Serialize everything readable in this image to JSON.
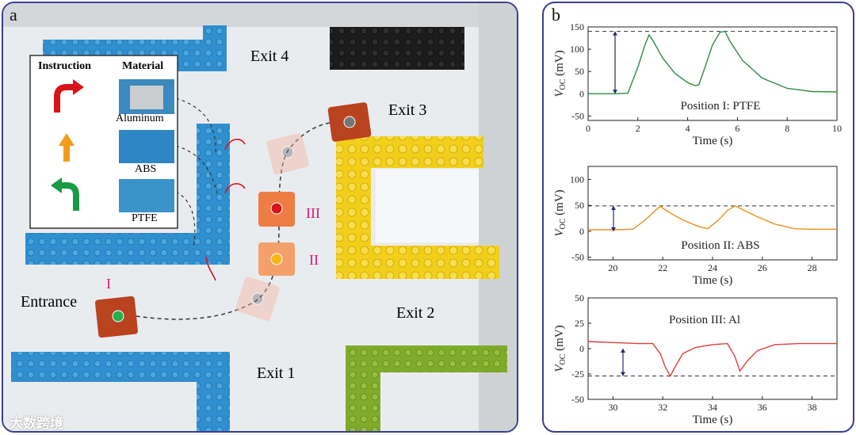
{
  "panel_a": {
    "letter": "a",
    "exits": {
      "exit1": "Exit 1",
      "exit2": "Exit 2",
      "exit3": "Exit 3",
      "exit4": "Exit 4"
    },
    "entrance": "Entrance",
    "positions": {
      "p1": "I",
      "p2": "II",
      "p3": "III"
    },
    "legend": {
      "instruction_header": "Instruction",
      "material_header": "Material",
      "rows": [
        {
          "material": "Aluminum",
          "arrow": "turn-right-arrow-icon",
          "color": "#d7141b"
        },
        {
          "material": "ABS",
          "arrow": "straight-arrow-icon",
          "color": "#f39a1b"
        },
        {
          "material": "PTFE",
          "arrow": "turn-left-arrow-icon",
          "color": "#1a9a46"
        }
      ]
    },
    "watermark": "大数跨境"
  },
  "panel_b": {
    "letter": "b",
    "chart_data": [
      {
        "type": "line",
        "annotation": "Position I: PTFE",
        "xlabel": "Time (s)",
        "ylabel_main": "V",
        "ylabel_sub": "OC",
        "ylabel_unit": " (mV)",
        "xlim": [
          0,
          10
        ],
        "ylim": [
          -60,
          150
        ],
        "xticks": [
          0,
          2,
          4,
          6,
          8,
          10
        ],
        "yticks": [
          -50,
          0,
          50,
          100,
          150
        ],
        "dashed_level": 140,
        "color": "#2e8b47",
        "x": [
          0,
          1,
          1.6,
          2.0,
          2.3,
          2.45,
          2.6,
          3.0,
          3.5,
          4.0,
          4.3,
          4.45,
          4.7,
          5.0,
          5.3,
          5.5,
          5.7,
          6.2,
          7.0,
          8.0,
          9.0,
          10
        ],
        "y": [
          0,
          0,
          1,
          60,
          112,
          132,
          120,
          80,
          45,
          25,
          18,
          20,
          60,
          110,
          138,
          140,
          118,
          75,
          35,
          12,
          5,
          4
        ]
      },
      {
        "type": "line",
        "annotation": "Position II: ABS",
        "xlabel": "Time (s)",
        "ylabel_main": "V",
        "ylabel_sub": "OC",
        "ylabel_unit": " (mV)",
        "xlim": [
          19,
          29
        ],
        "ylim": [
          -55,
          125
        ],
        "xticks": [
          20,
          22,
          24,
          26,
          28
        ],
        "yticks": [
          -50,
          0,
          50,
          100
        ],
        "dashed_level": 49,
        "color": "#e8901d",
        "x": [
          19,
          20,
          20.8,
          21.3,
          21.7,
          21.9,
          22.2,
          22.8,
          23.4,
          23.8,
          24.2,
          24.6,
          24.9,
          25.2,
          25.8,
          26.5,
          27.3,
          28,
          29
        ],
        "y": [
          3,
          3,
          4,
          22,
          40,
          48,
          38,
          22,
          10,
          5,
          20,
          40,
          49,
          42,
          28,
          14,
          5,
          4,
          4
        ]
      },
      {
        "type": "line",
        "annotation": "Position III: Al",
        "xlabel": "Time (s)",
        "ylabel_main": "V",
        "ylabel_sub": "OC",
        "ylabel_unit": " (mV)",
        "xlim": [
          29,
          39
        ],
        "ylim": [
          -50,
          50
        ],
        "xticks": [
          30,
          32,
          34,
          36,
          38
        ],
        "yticks": [
          -50,
          -25,
          0,
          25,
          50
        ],
        "dashed_level": -27,
        "color": "#d9403b",
        "x": [
          29,
          30,
          31,
          31.6,
          31.9,
          32.1,
          32.3,
          32.5,
          32.8,
          33.3,
          34,
          34.6,
          34.9,
          35.1,
          35.4,
          35.8,
          36.5,
          37.5,
          39
        ],
        "y": [
          7,
          6,
          5,
          5,
          -5,
          -18,
          -27,
          -18,
          -5,
          1,
          4,
          5,
          -8,
          -22,
          -12,
          -2,
          4,
          5,
          5
        ]
      }
    ]
  }
}
